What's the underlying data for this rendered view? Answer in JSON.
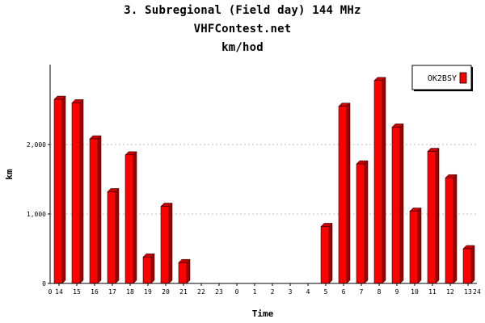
{
  "chart_data": {
    "type": "bar",
    "title": "3. Subregional (Field day) 144 MHz",
    "subtitle": "VHFContest.net",
    "subtitle2": "km/hod",
    "xlabel": "Time",
    "ylabel": "km",
    "categories": [
      "14",
      "15",
      "16",
      "17",
      "18",
      "19",
      "20",
      "21",
      "22",
      "23",
      "0",
      "1",
      "2",
      "3",
      "4",
      "5",
      "6",
      "7",
      "8",
      "9",
      "10",
      "11",
      "12",
      "13"
    ],
    "series": [
      {
        "name": "OK2BSY",
        "values": [
          2650,
          2600,
          2080,
          1320,
          1850,
          380,
          1110,
          300,
          0,
          0,
          0,
          0,
          0,
          0,
          0,
          820,
          2550,
          1720,
          2920,
          2250,
          1040,
          1900,
          1520,
          500
        ]
      }
    ],
    "yticks": [
      0,
      1000,
      2000
    ],
    "ytick_labels": [
      "0",
      "1,000",
      "2,000"
    ],
    "ylim": [
      0,
      3150
    ],
    "x_extra_labels": {
      "start": "0",
      "end": "24"
    },
    "grid": "horizontal dashed",
    "legend": "top-right",
    "colors": {
      "bar_front": "#ff0000",
      "bar_side": "#9a0000",
      "bar_top": "#cc0000"
    }
  }
}
